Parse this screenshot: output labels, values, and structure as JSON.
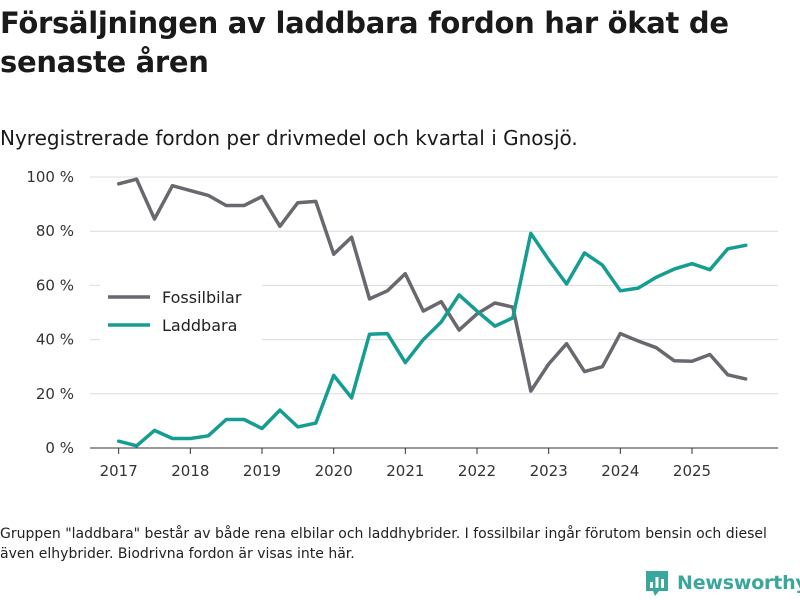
{
  "title": "Försäljningen av laddbara fordon har ökat de senaste åren",
  "subtitle": "Nyregistrerade fordon per drivmedel och kvartal i Gnosjö.",
  "footnote": "Gruppen \"laddbara\" består av både rena elbilar och laddhybrider. I fossilbilar ingår förutom bensin och diesel även elhybrider. Biodrivna fordon är visas inte här.",
  "brand": {
    "name": "Newsworthy",
    "icon": "newsworthy-logo-icon",
    "color": "#3aa79c"
  },
  "chart_data": {
    "type": "line",
    "title": "Försäljningen av laddbara fordon har ökat de senaste åren",
    "subtitle": "Nyregistrerade fordon per drivmedel och kvartal i Gnosjö.",
    "xlabel": "",
    "ylabel": "",
    "x_ticks": [
      "2017",
      "2018",
      "2019",
      "2020",
      "2021",
      "2022",
      "2023",
      "2024",
      "2025"
    ],
    "x": [
      2017.0,
      2017.25,
      2017.5,
      2017.75,
      2018.0,
      2018.25,
      2018.5,
      2018.75,
      2019.0,
      2019.25,
      2019.5,
      2019.75,
      2020.0,
      2020.25,
      2020.5,
      2020.75,
      2021.0,
      2021.25,
      2021.5,
      2021.75,
      2022.0,
      2022.25,
      2022.5,
      2022.75,
      2023.0,
      2023.25,
      2023.5,
      2023.75,
      2024.0,
      2024.25,
      2024.5,
      2024.75,
      2025.0,
      2025.25,
      2025.5,
      2025.75
    ],
    "xlim": [
      2016.6,
      2026.2
    ],
    "ylim": [
      0,
      100
    ],
    "y_ticks": [
      0,
      20,
      40,
      60,
      80,
      100
    ],
    "y_tick_labels": [
      "0 %",
      "20 %",
      "40 %",
      "60 %",
      "80 %",
      "100 %"
    ],
    "grid": true,
    "legend_position": "left-middle",
    "series": [
      {
        "name": "Fossilbilar",
        "color": "#69686e",
        "values": [
          97.5,
          99.2,
          84.5,
          96.8,
          95.0,
          93.2,
          89.5,
          89.5,
          92.8,
          81.8,
          90.5,
          91.0,
          71.5,
          77.8,
          55.0,
          58.0,
          64.3,
          50.5,
          54.0,
          43.5,
          49.5,
          53.5,
          52.0,
          21.0,
          31.0,
          38.5,
          28.2,
          30.0,
          42.2,
          39.5,
          37.0,
          32.2,
          32.0,
          34.5,
          27.0,
          25.5
        ]
      },
      {
        "name": "Laddbara",
        "color": "#159d92",
        "values": [
          2.5,
          0.8,
          6.5,
          3.5,
          3.5,
          4.5,
          10.5,
          10.5,
          7.2,
          14.0,
          7.8,
          9.2,
          26.8,
          18.5,
          42.0,
          42.2,
          31.5,
          40.0,
          46.5,
          56.5,
          50.5,
          45.0,
          48.0,
          79.2,
          69.5,
          60.5,
          72.0,
          67.5,
          58.0,
          59.0,
          63.0,
          66.0,
          68.0,
          65.8,
          73.5,
          74.8
        ]
      }
    ]
  }
}
